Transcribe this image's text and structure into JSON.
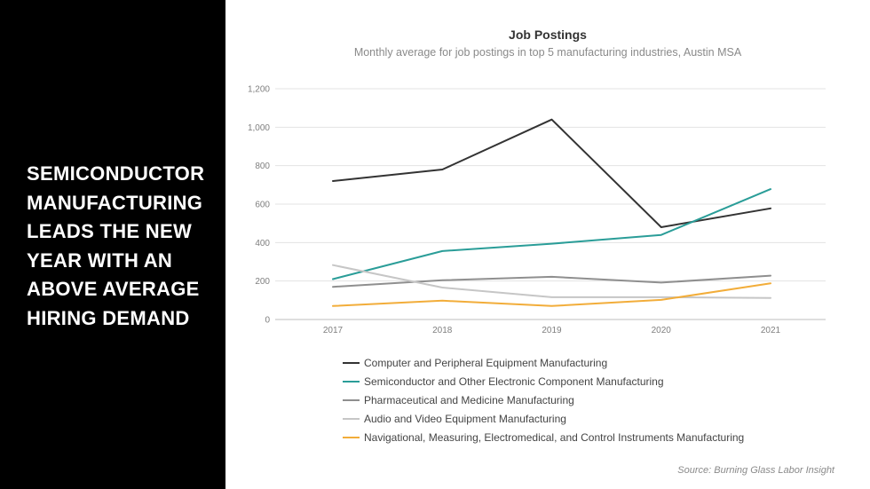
{
  "headline": {
    "lines": [
      "SEMICONDUCTOR",
      "MANUFACTURING",
      "LEADS THE NEW",
      "YEAR WITH AN",
      "ABOVE AVERAGE",
      "HIRING DEMAND"
    ]
  },
  "source": "Source: Burning Glass Labor Insight",
  "chart_data": {
    "type": "line",
    "title": "Job Postings",
    "subtitle": "Monthly average for job postings in top 5 manufacturing industries, Austin MSA",
    "xlabel": "",
    "ylabel": "",
    "x": [
      "2017",
      "2018",
      "2019",
      "2020",
      "2021"
    ],
    "ylim": [
      0,
      1200
    ],
    "yticks": [
      0,
      200,
      400,
      600,
      800,
      1000,
      1200
    ],
    "ytick_labels": [
      "0",
      "200",
      "400",
      "600",
      "800",
      "1,000",
      "1,200"
    ],
    "grid": true,
    "legend_position": "bottom",
    "series": [
      {
        "name": "Computer and Peripheral Equipment Manufacturing",
        "color": "#333333",
        "values": [
          720,
          780,
          1040,
          480,
          578
        ]
      },
      {
        "name": "Semiconductor and Other Electronic Component Manufacturing",
        "color": "#2a9d98",
        "values": [
          210,
          356,
          394,
          440,
          678
        ]
      },
      {
        "name": "Pharmaceutical and Medicine Manufacturing",
        "color": "#8f8f8f",
        "values": [
          170,
          204,
          222,
          192,
          228
        ]
      },
      {
        "name": "Audio and Video Equipment Manufacturing",
        "color": "#c6c6c6",
        "values": [
          283,
          166,
          116,
          116,
          112
        ]
      },
      {
        "name": "Navigational, Measuring, Electromedical, and Control Instruments Manufacturing",
        "color": "#f2ad3a",
        "values": [
          70,
          98,
          70,
          102,
          188
        ]
      }
    ]
  }
}
